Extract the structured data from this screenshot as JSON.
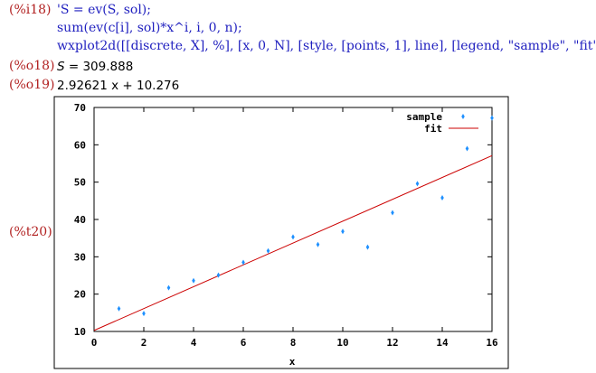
{
  "session": {
    "input_label": "(%i18)",
    "input_lines": [
      "'S = ev(S, sol);",
      "sum(ev(c[i], sol)*x^i, i, 0, n);",
      "wxplot2d([[discrete, X], %], [x, 0, N], [style, [points, 1], line], [legend, \"sample\", \"fit\"])$"
    ],
    "out18_label": "(%o18)",
    "out18_lhs": "S",
    "out18_rhs": " = 309.888",
    "out19_label": "(%o19)",
    "out19_text": "2.92621 x + 10.276",
    "plot_label": "(%t20)"
  },
  "chart_data": {
    "type": "scatter",
    "xlabel": "x",
    "ylabel": "",
    "xlim": [
      0,
      16
    ],
    "ylim": [
      10,
      70
    ],
    "xticks": [
      0,
      2,
      4,
      6,
      8,
      10,
      12,
      14,
      16
    ],
    "yticks": [
      10,
      20,
      30,
      40,
      50,
      60,
      70
    ],
    "grid": false,
    "legend_position": "top-right",
    "series": [
      {
        "name": "sample",
        "kind": "points",
        "color": "#1e90ff",
        "x": [
          1,
          2,
          3,
          4,
          5,
          6,
          7,
          8,
          9,
          10,
          11,
          12,
          13,
          14,
          15,
          16
        ],
        "y": [
          16.1,
          14.8,
          21.7,
          23.6,
          25.1,
          28.5,
          31.6,
          35.3,
          33.3,
          36.8,
          32.6,
          41.8,
          49.6,
          45.8,
          59.0,
          67.2
        ]
      },
      {
        "name": "fit",
        "kind": "line",
        "color": "#cc0000",
        "slope": 2.92621,
        "intercept": 10.276
      }
    ]
  }
}
